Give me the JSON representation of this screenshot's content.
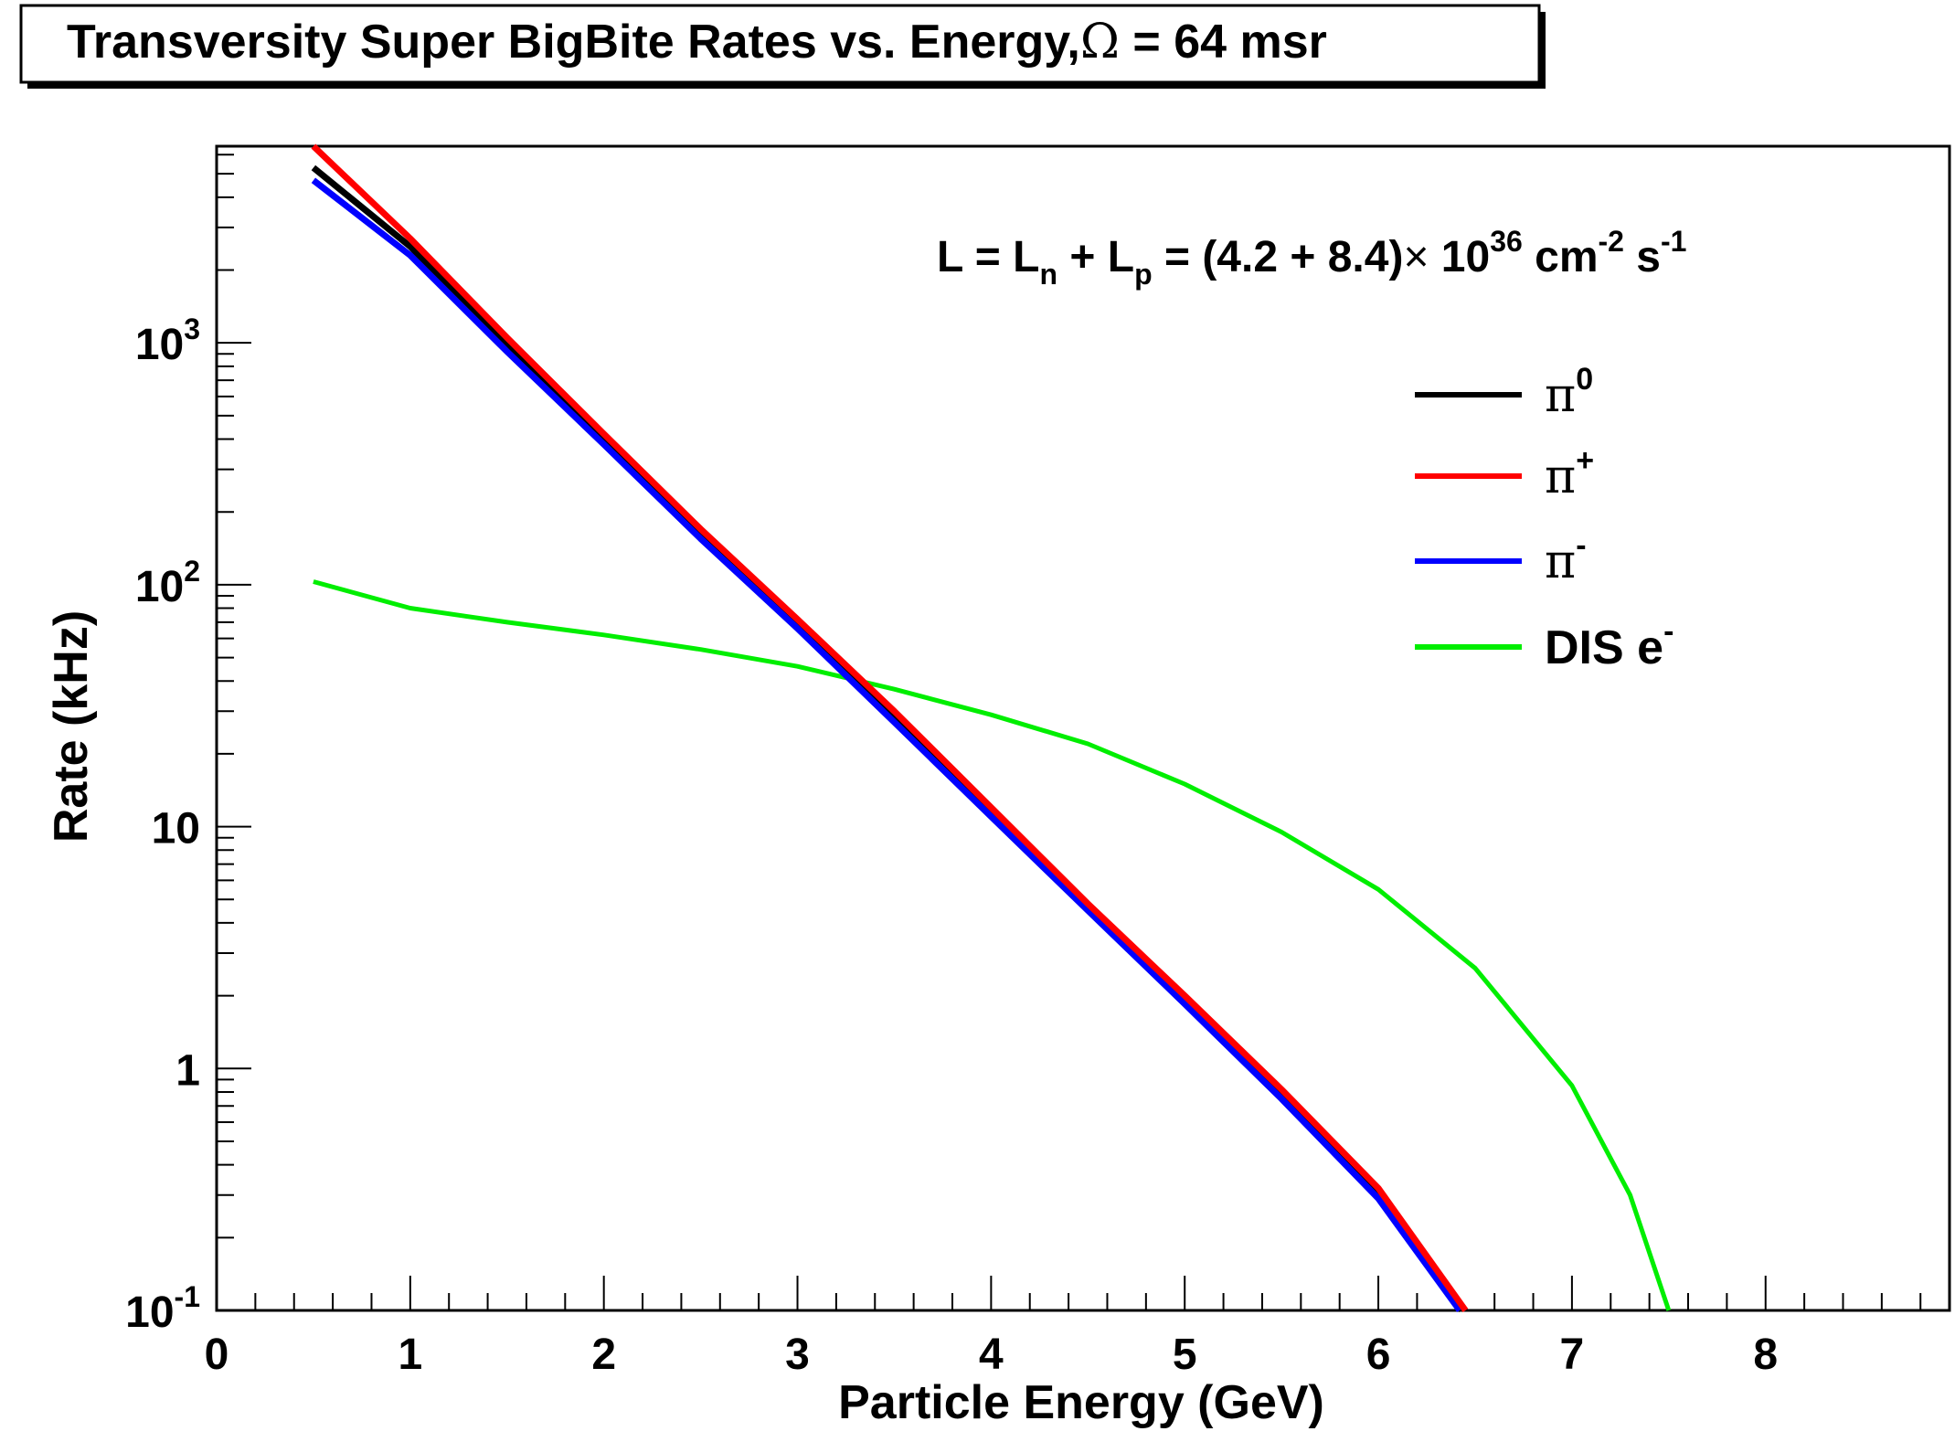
{
  "chart_data": {
    "type": "line",
    "title": "Transversity Super BigBite Rates vs. Energy,",
    "title_symbol": "Ω",
    "title_suffix": " = 64 msr",
    "xlabel": "Particle Energy (GeV)",
    "ylabel": "Rate (kHz)",
    "xlim": [
      0,
      8.95
    ],
    "ylim": [
      0.1,
      6500
    ],
    "y_scale": "log",
    "grid": false,
    "legend_position": "top-right",
    "x_ticks": [
      "0",
      "1",
      "2",
      "3",
      "4",
      "5",
      "6",
      "7",
      "8"
    ],
    "y_ticks": [
      {
        "value": 0.1,
        "base": "10",
        "exp": "-1"
      },
      {
        "value": 1,
        "base": "1",
        "exp": ""
      },
      {
        "value": 10,
        "base": "10",
        "exp": ""
      },
      {
        "value": 100,
        "base": "10",
        "exp": "2"
      },
      {
        "value": 1000,
        "base": "10",
        "exp": "3"
      }
    ],
    "annotation": {
      "parts": [
        {
          "t": "L = L",
          "s": "n"
        },
        {
          "t": "n",
          "s": "sub"
        },
        {
          "t": " + L",
          "s": "n"
        },
        {
          "t": "p",
          "s": "sub"
        },
        {
          "t": " = (4.2 + 8.4)",
          "s": "n"
        },
        {
          "t": "×",
          "s": "n"
        },
        {
          "t": " 10",
          "s": "n"
        },
        {
          "t": "36",
          "s": "sup"
        },
        {
          "t": " cm",
          "s": "n"
        },
        {
          "t": "-2",
          "s": "sup"
        },
        {
          "t": " s",
          "s": "n"
        },
        {
          "t": "-1",
          "s": "sup"
        }
      ]
    },
    "series": [
      {
        "name": "π",
        "name_sup": "0",
        "color": "#000000",
        "x": [
          0.5,
          1.0,
          1.5,
          2.0,
          2.5,
          3.0,
          3.5,
          4.0,
          4.5,
          5.0,
          5.5,
          6.0,
          6.43
        ],
        "y": [
          5300,
          2500,
          1000,
          390,
          160,
          68,
          28,
          11.3,
          4.6,
          1.9,
          0.78,
          0.3,
          0.1
        ]
      },
      {
        "name": "π",
        "name_sup": "+",
        "color": "#ff0000",
        "x": [
          0.5,
          1.0,
          1.5,
          2.0,
          2.5,
          3.0,
          3.5,
          4.0,
          4.5,
          5.0,
          5.5,
          6.0,
          6.45
        ],
        "y": [
          6500,
          2700,
          1050,
          420,
          170,
          72,
          30,
          12,
          4.8,
          2.0,
          0.82,
          0.32,
          0.1
        ]
      },
      {
        "name": "π",
        "name_sup": "-",
        "color": "#0000ff",
        "x": [
          0.5,
          1.0,
          1.5,
          2.0,
          2.5,
          3.0,
          3.5,
          4.0,
          4.5,
          5.0,
          5.5,
          6.0,
          6.42
        ],
        "y": [
          4700,
          2300,
          920,
          380,
          155,
          66,
          27,
          11,
          4.5,
          1.85,
          0.75,
          0.29,
          0.1
        ]
      },
      {
        "name": "DIS e",
        "name_sup": "-",
        "color": "#00ee00",
        "x": [
          0.5,
          1.0,
          1.5,
          2.0,
          2.5,
          3.0,
          3.5,
          4.0,
          4.5,
          5.0,
          5.5,
          6.0,
          6.5,
          7.0,
          7.3,
          7.5
        ],
        "y": [
          103,
          80,
          70,
          62,
          54,
          46,
          37,
          29,
          22,
          15,
          9.5,
          5.5,
          2.6,
          0.85,
          0.3,
          0.1
        ]
      }
    ]
  }
}
